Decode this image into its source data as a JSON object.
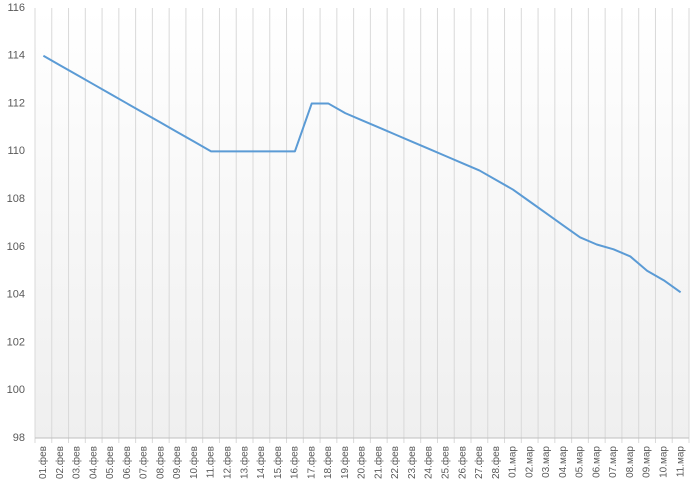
{
  "chart_data": {
    "type": "line",
    "categories": [
      "01.фев",
      "02.фев",
      "03.фев",
      "04.фев",
      "05.фев",
      "06.фев",
      "07.фев",
      "08.фев",
      "09.фев",
      "10.фев",
      "11.фев",
      "12.фев",
      "13.фев",
      "14.фев",
      "15.фев",
      "16.фев",
      "17.фев",
      "18.фев",
      "19.фев",
      "20.фев",
      "21.фев",
      "22.фев",
      "23.фев",
      "24.фев",
      "25.фев",
      "26.фев",
      "27.фев",
      "28.фев",
      "01.мар",
      "02.мар",
      "03.мар",
      "04.мар",
      "05.мар",
      "06.мар",
      "07.мар",
      "08.мар",
      "09.мар",
      "10.мар",
      "11.мар"
    ],
    "values": [
      114,
      113.6,
      113.2,
      112.8,
      112.4,
      112,
      111.6,
      111.2,
      110.8,
      110.4,
      110,
      110,
      110,
      110,
      110,
      110,
      112,
      112,
      111.6,
      111.3,
      111,
      110.7,
      110.4,
      110.1,
      109.8,
      109.5,
      109.2,
      108.8,
      108.4,
      107.9,
      107.4,
      106.9,
      106.4,
      106.1,
      105.9,
      105.6,
      105,
      104.6,
      104.1
    ],
    "color": "#5b9bd5",
    "ylim": [
      98,
      116
    ],
    "yticks": [
      98,
      100,
      102,
      104,
      106,
      108,
      110,
      112,
      114,
      116
    ],
    "grid": "x"
  }
}
